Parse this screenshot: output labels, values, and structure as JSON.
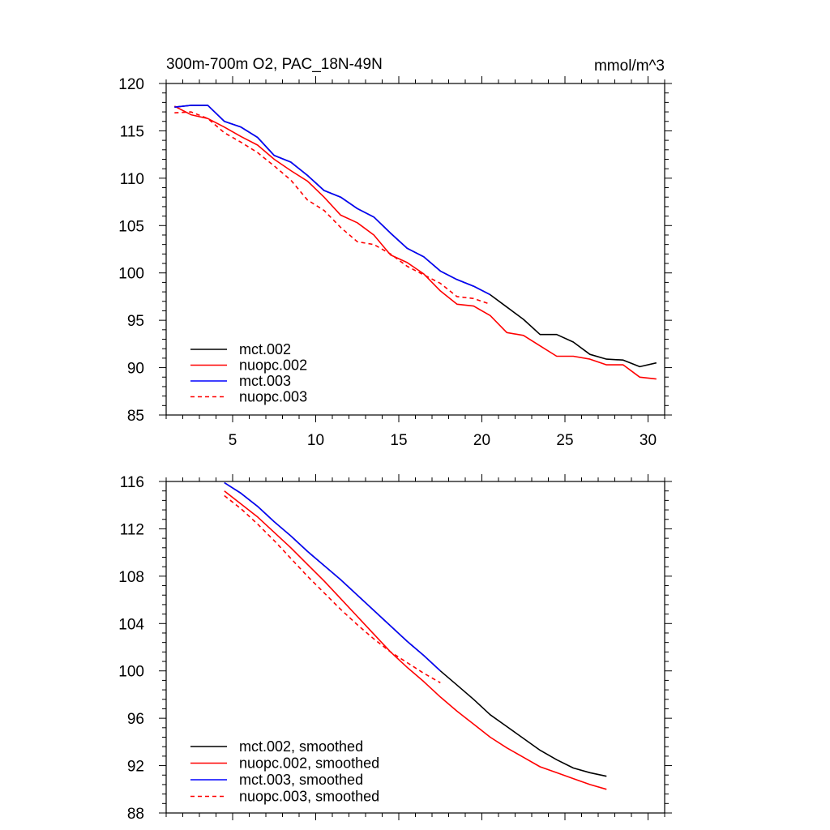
{
  "chart_data": [
    {
      "type": "line",
      "title": "300m-700m O2, PAC_18N-49N",
      "units_label": "mmol/m^3",
      "xlim": [
        1,
        31
      ],
      "ylim": [
        85,
        120
      ],
      "xticks": [
        5,
        10,
        15,
        20,
        25,
        30
      ],
      "yticks": [
        85,
        90,
        95,
        100,
        105,
        110,
        115,
        120
      ],
      "legend_position": "bottom-left",
      "series": [
        {
          "name": "mct.002",
          "color": "#000000",
          "dash": "solid",
          "x": [
            1.5,
            2.5,
            3.5,
            4.5,
            5.5,
            6.5,
            7.5,
            8.5,
            9.5,
            10.5,
            11.5,
            12.5,
            13.5,
            14.5,
            15.5,
            16.5,
            17.5,
            18.5,
            19.5,
            20.5,
            21.5,
            22.5,
            23.5,
            24.5,
            25.5,
            26.5,
            27.5,
            28.5,
            29.5,
            30.5
          ],
          "y": [
            117.5,
            117.7,
            117.7,
            116.0,
            115.4,
            114.3,
            112.4,
            111.7,
            110.3,
            108.7,
            108.0,
            106.8,
            105.9,
            104.2,
            102.6,
            101.7,
            100.2,
            99.3,
            98.6,
            97.7,
            96.4,
            95.1,
            93.5,
            93.5,
            92.7,
            91.4,
            90.9,
            90.8,
            90.1,
            90.5
          ]
        },
        {
          "name": "nuopc.002",
          "color": "#ff0000",
          "dash": "solid",
          "x": [
            1.5,
            2.5,
            3.5,
            4.5,
            5.5,
            6.5,
            7.5,
            8.5,
            9.5,
            10.5,
            11.5,
            12.5,
            13.5,
            14.5,
            15.5,
            16.5,
            17.5,
            18.5,
            19.5,
            20.5,
            21.5,
            22.5,
            23.5,
            24.5,
            25.5,
            26.5,
            27.5,
            28.5,
            29.5,
            30.5
          ],
          "y": [
            117.6,
            116.7,
            116.3,
            115.4,
            114.4,
            113.5,
            112.0,
            110.8,
            109.7,
            108.0,
            106.1,
            105.3,
            104.0,
            101.9,
            101.1,
            99.9,
            98.1,
            96.7,
            96.5,
            95.5,
            93.7,
            93.4,
            92.3,
            91.2,
            91.2,
            90.9,
            90.3,
            90.3,
            89.0,
            88.8
          ]
        },
        {
          "name": "mct.003",
          "color": "#0000ff",
          "dash": "solid",
          "x": [
            1.5,
            2.5,
            3.5,
            4.5,
            5.5,
            6.5,
            7.5,
            8.5,
            9.5,
            10.5,
            11.5,
            12.5,
            13.5,
            14.5,
            15.5,
            16.5,
            17.5,
            18.5,
            19.5,
            20.5
          ],
          "y": [
            117.5,
            117.7,
            117.7,
            116.0,
            115.4,
            114.3,
            112.4,
            111.7,
            110.3,
            108.7,
            108.0,
            106.8,
            105.9,
            104.2,
            102.6,
            101.7,
            100.2,
            99.3,
            98.6,
            97.7
          ]
        },
        {
          "name": "nuopc.003",
          "color": "#ff0000",
          "dash": "dashed",
          "x": [
            1.5,
            2.5,
            3.5,
            4.5,
            5.5,
            6.5,
            7.5,
            8.5,
            9.5,
            10.5,
            11.5,
            12.5,
            13.5,
            14.5,
            15.5,
            16.5,
            17.5,
            18.5,
            19.5,
            20.5
          ],
          "y": [
            116.9,
            117.0,
            116.3,
            114.8,
            113.8,
            112.7,
            111.3,
            109.8,
            107.7,
            106.6,
            104.8,
            103.3,
            103.0,
            102.0,
            100.7,
            99.8,
            98.9,
            97.5,
            97.3,
            96.7
          ]
        }
      ]
    },
    {
      "type": "line",
      "title": "",
      "xlim": [
        1,
        31
      ],
      "ylim": [
        88,
        116
      ],
      "xticks": [
        5,
        10,
        15,
        20,
        25,
        30
      ],
      "yticks": [
        88,
        92,
        96,
        100,
        104,
        108,
        112,
        116
      ],
      "show_xtick_labels": false,
      "legend_position": "bottom-left",
      "series": [
        {
          "name": "mct.002, smoothed",
          "color": "#000000",
          "dash": "solid",
          "x": [
            4.5,
            5.5,
            6.5,
            7.5,
            8.5,
            9.5,
            10.5,
            11.5,
            12.5,
            13.5,
            14.5,
            15.5,
            16.5,
            17.5,
            18.5,
            19.5,
            20.5,
            21.5,
            22.5,
            23.5,
            24.5,
            25.5,
            26.5,
            27.5
          ],
          "y": [
            115.9,
            115.0,
            113.9,
            112.6,
            111.4,
            110.1,
            108.9,
            107.7,
            106.4,
            105.1,
            103.8,
            102.5,
            101.3,
            100.0,
            98.8,
            97.6,
            96.3,
            95.3,
            94.3,
            93.3,
            92.5,
            91.8,
            91.4,
            91.1
          ]
        },
        {
          "name": "nuopc.002, smoothed",
          "color": "#ff0000",
          "dash": "solid",
          "x": [
            4.5,
            5.5,
            6.5,
            7.5,
            8.5,
            9.5,
            10.5,
            11.5,
            12.5,
            13.5,
            14.5,
            15.5,
            16.5,
            17.5,
            18.5,
            19.5,
            20.5,
            21.5,
            22.5,
            23.5,
            24.5,
            25.5,
            26.5,
            27.5
          ],
          "y": [
            115.2,
            114.1,
            113.0,
            111.7,
            110.4,
            109.0,
            107.6,
            106.1,
            104.6,
            103.1,
            101.6,
            100.3,
            99.1,
            97.8,
            96.6,
            95.5,
            94.4,
            93.5,
            92.7,
            91.9,
            91.4,
            90.9,
            90.4,
            90.0
          ]
        },
        {
          "name": "mct.003, smoothed",
          "color": "#0000ff",
          "dash": "solid",
          "x": [
            4.5,
            5.5,
            6.5,
            7.5,
            8.5,
            9.5,
            10.5,
            11.5,
            12.5,
            13.5,
            14.5,
            15.5,
            16.5,
            17.5
          ],
          "y": [
            115.9,
            115.0,
            113.9,
            112.6,
            111.4,
            110.1,
            108.9,
            107.7,
            106.4,
            105.1,
            103.8,
            102.5,
            101.3,
            100.0
          ]
        },
        {
          "name": "nuopc.003, smoothed",
          "color": "#ff0000",
          "dash": "dashed",
          "x": [
            4.5,
            5.5,
            6.5,
            7.5,
            8.5,
            9.5,
            10.5,
            11.5,
            12.5,
            13.5,
            14.5,
            15.5,
            16.5,
            17.5
          ],
          "y": [
            114.8,
            113.7,
            112.4,
            111.0,
            109.5,
            108.0,
            106.6,
            105.2,
            103.9,
            102.7,
            101.6,
            100.7,
            99.8,
            99.0
          ]
        }
      ]
    }
  ]
}
